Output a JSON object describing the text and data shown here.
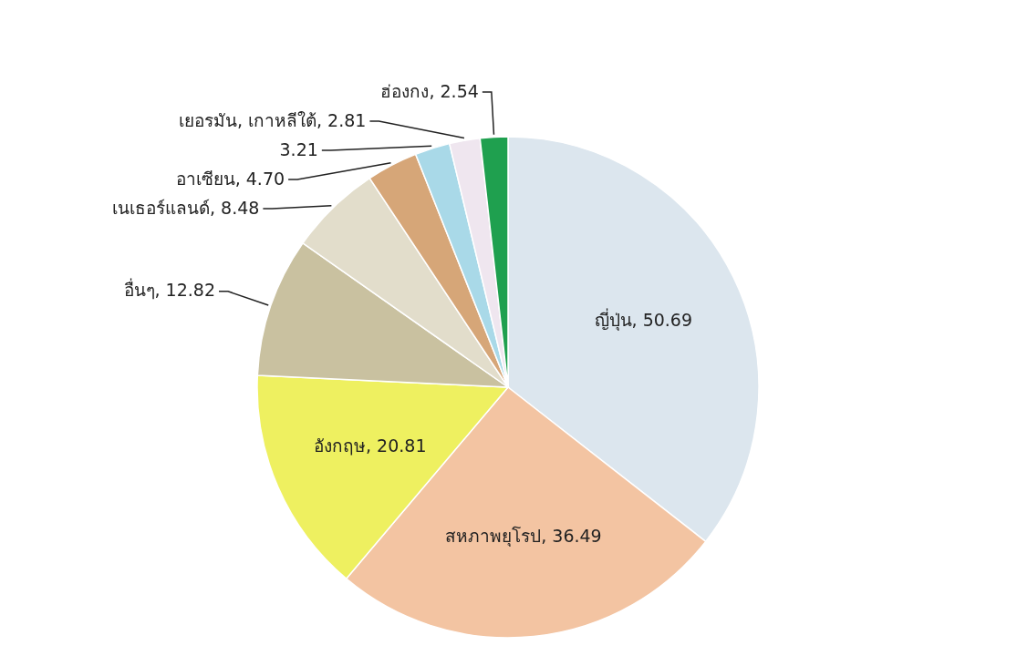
{
  "chart_data": {
    "type": "pie",
    "categories": [
      "ญี่ปุ่น",
      "สหภาพยุโรป",
      "อังกฤษ",
      "อื่นๆ",
      "เนเธอร์แลนด์",
      "อาเซียน",
      null,
      "เยอรมัน, เกาหลีใต้",
      "ฮ่องกง"
    ],
    "values": [
      50.69,
      36.49,
      20.81,
      12.82,
      8.48,
      4.7,
      3.21,
      2.81,
      2.54
    ],
    "value_labels": [
      "50.69",
      "36.49",
      "20.81",
      "12.82",
      "8.48",
      "4.70",
      "3.21",
      "2.81",
      "2.54"
    ],
    "colors": [
      "#dce6ee",
      "#f3c4a2",
      "#eef060",
      "#c9c1a0",
      "#e2ddcb",
      "#d6a678",
      "#a9d9e8",
      "#efe6ef",
      "#1fa04f"
    ]
  }
}
